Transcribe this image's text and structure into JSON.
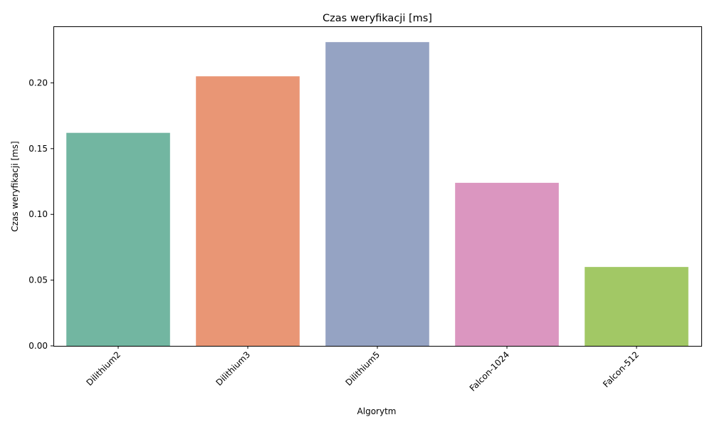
{
  "chart_data": {
    "type": "bar",
    "title": "Czas weryfikacji [ms]",
    "xlabel": "Algorytm",
    "ylabel": "Czas weryfikacji [ms]",
    "categories": [
      "Dilithium2",
      "Dilithium3",
      "Dilithium5",
      "Falcon-1024",
      "Falcon-512"
    ],
    "values": [
      0.162,
      0.205,
      0.231,
      0.124,
      0.06
    ],
    "colors": [
      "#72b6a1",
      "#e99675",
      "#95a3c3",
      "#db96c0",
      "#a2c865"
    ],
    "ylim": [
      0,
      0.243
    ],
    "yticks": [
      0.0,
      0.05,
      0.1,
      0.15,
      0.2
    ],
    "ytick_labels": [
      "0.00",
      "0.05",
      "0.10",
      "0.15",
      "0.20"
    ],
    "xtick_rotation": 45,
    "grid": false,
    "legend": false
  }
}
